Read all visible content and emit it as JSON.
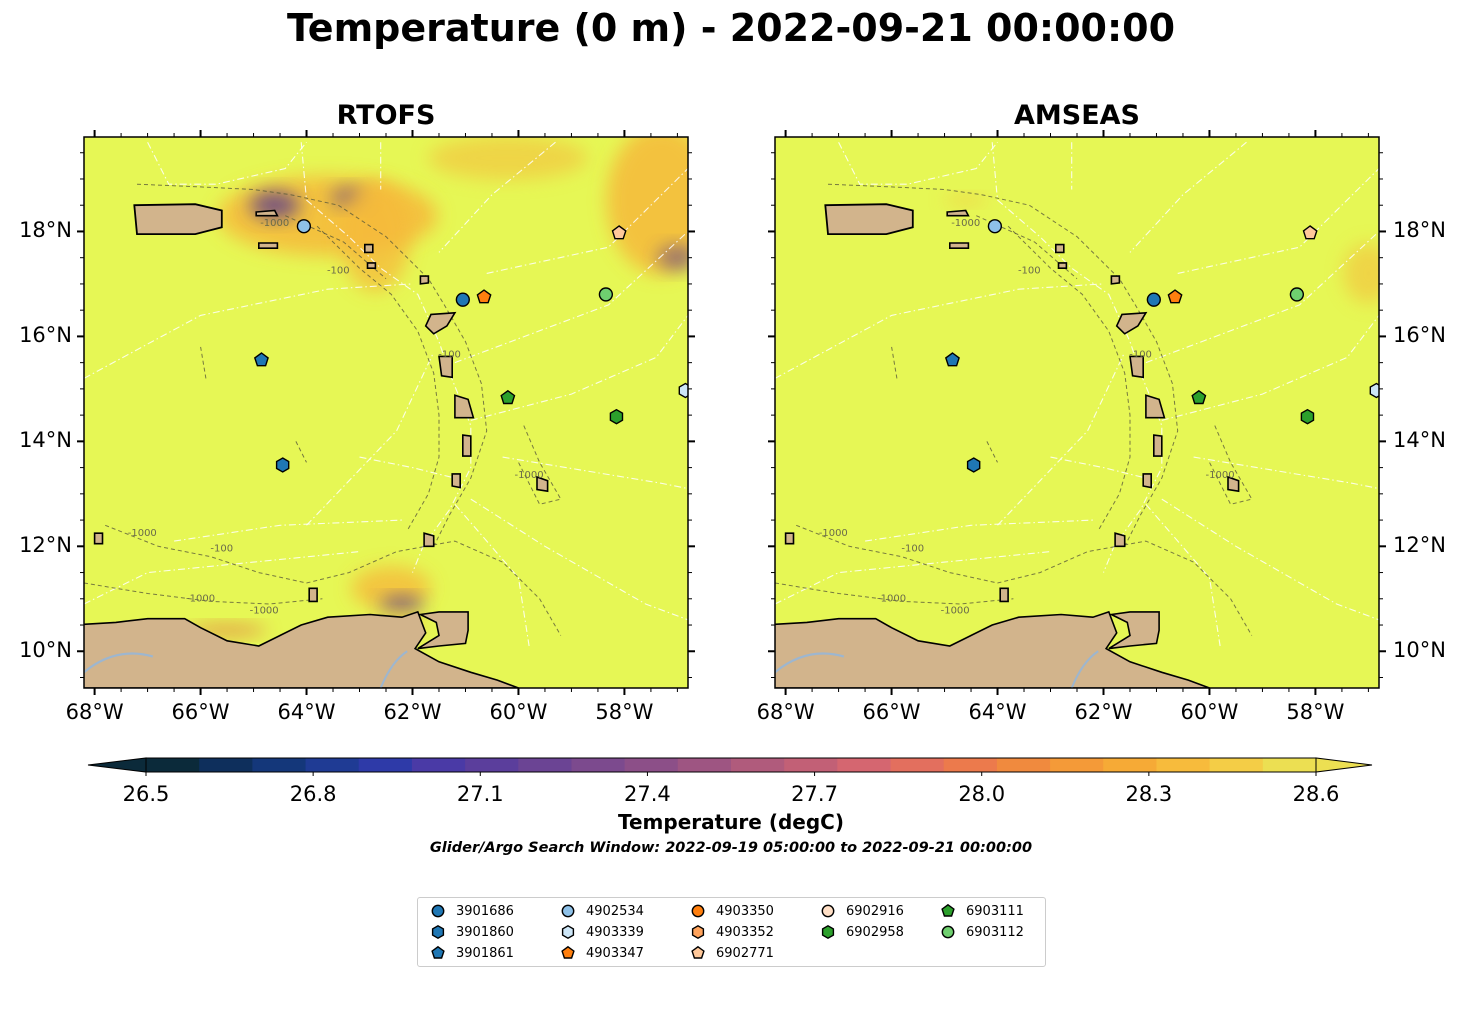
{
  "title": "Temperature (0 m) - 2022-09-21 00:00:00",
  "panels": [
    {
      "title": "RTOFS"
    },
    {
      "title": "AMSEAS"
    }
  ],
  "map": {
    "lon_range": [
      -68.2,
      -56.8
    ],
    "lat_range": [
      9.3,
      19.8
    ],
    "x_ticks": [
      "68°W",
      "66°W",
      "64°W",
      "62°W",
      "60°W",
      "58°W"
    ],
    "y_ticks": [
      "18°N",
      "16°N",
      "14°N",
      "12°N",
      "10°N"
    ],
    "ocean_color": "#e6f755",
    "land_color": "#d2b48c",
    "warm_color": "#f6b93b",
    "cool_color": "#5a3b8c",
    "contour_labels": [
      "-100",
      "-1000"
    ]
  },
  "colorbar": {
    "label": "Temperature (degC)",
    "min": 26.5,
    "max": 28.6,
    "extend": "both",
    "ticks": [
      "26.5",
      "26.8",
      "27.1",
      "27.4",
      "27.7",
      "28.0",
      "28.3",
      "28.6"
    ],
    "colors": [
      "#0b2a3a",
      "#0e2f5c",
      "#14377a",
      "#1f3b94",
      "#2e3aa8",
      "#4a3aa6",
      "#5b3e9c",
      "#6b4494",
      "#7c4a8e",
      "#8c4f88",
      "#9e5582",
      "#b05b7c",
      "#c26076",
      "#d56670",
      "#e36f5e",
      "#ec7a4c",
      "#f08a3e",
      "#f49a38",
      "#f6aa36",
      "#f7bb3c",
      "#f4cd46",
      "#ecdf52"
    ]
  },
  "search_window": "Glider/Argo Search Window: 2022-09-19 05:00:00 to 2022-09-21 00:00:00",
  "legend": [
    {
      "label": "3901686",
      "marker": "circle",
      "color": "#1f77b4"
    },
    {
      "label": "3901860",
      "marker": "hexagon",
      "color": "#1f77b4"
    },
    {
      "label": "3901861",
      "marker": "pentagon",
      "color": "#1f77b4"
    },
    {
      "label": "4902534",
      "marker": "circle",
      "color": "#8ec1e8"
    },
    {
      "label": "4903339",
      "marker": "hexagon",
      "color": "#cde6f7"
    },
    {
      "label": "4903347",
      "marker": "pentagon",
      "color": "#ff7f0e"
    },
    {
      "label": "4903350",
      "marker": "circle",
      "color": "#ff7f0e"
    },
    {
      "label": "4903352",
      "marker": "hexagon",
      "color": "#ffa35c"
    },
    {
      "label": "6902771",
      "marker": "pentagon",
      "color": "#ffc89a"
    },
    {
      "label": "6902916",
      "marker": "circle",
      "color": "#ffdfc6"
    },
    {
      "label": "6902958",
      "marker": "hexagon",
      "color": "#2ca02c"
    },
    {
      "label": "6903111",
      "marker": "pentagon",
      "color": "#2ca02c"
    },
    {
      "label": "6903112",
      "marker": "circle",
      "color": "#6fcf6f"
    }
  ],
  "floats": [
    {
      "id": "3901686",
      "lon": -61.05,
      "lat": 16.7
    },
    {
      "id": "3901860",
      "lon": -64.45,
      "lat": 13.55
    },
    {
      "id": "3901861",
      "lon": -64.85,
      "lat": 15.55
    },
    {
      "id": "4902534",
      "lon": -64.05,
      "lat": 18.1
    },
    {
      "id": "4903339",
      "lon": -56.85,
      "lat": 14.97
    },
    {
      "id": "4903347",
      "lon": -60.65,
      "lat": 16.75
    },
    {
      "id": "6902771",
      "lon": -58.1,
      "lat": 17.97
    },
    {
      "id": "6902958",
      "lon": -58.15,
      "lat": 14.47
    },
    {
      "id": "6903111",
      "lon": -60.2,
      "lat": 14.83
    },
    {
      "id": "6903112",
      "lon": -58.35,
      "lat": 16.8
    }
  ]
}
